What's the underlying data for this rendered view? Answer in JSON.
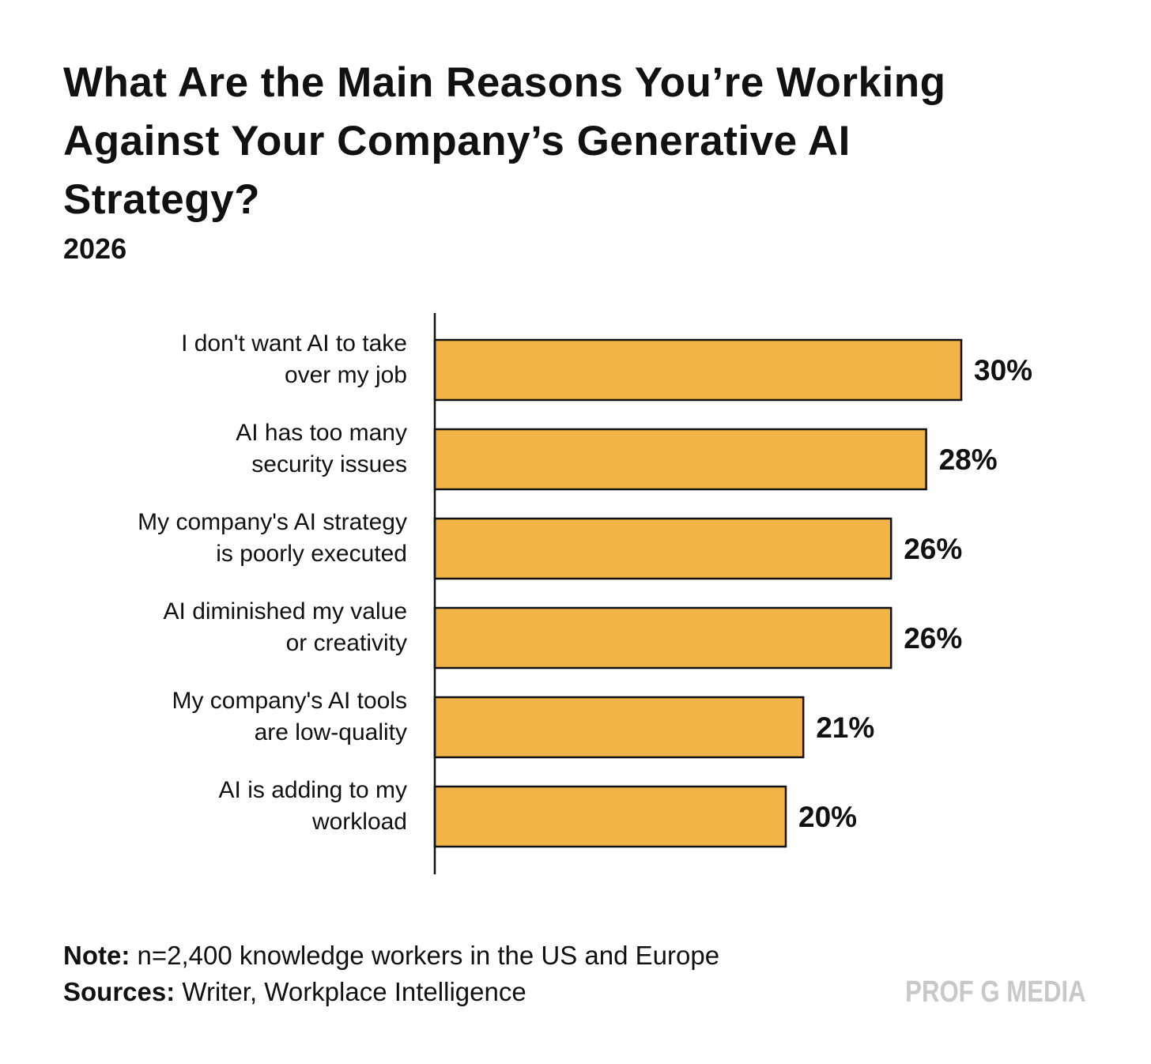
{
  "chart_data": {
    "type": "bar",
    "orientation": "horizontal",
    "title": "What Are the Main Reasons You’re Working Against Your Company’s Generative AI Strategy?",
    "subtitle": "2026",
    "categories": [
      [
        "I don't want AI to take",
        "over my job"
      ],
      [
        "AI has too many",
        "security issues"
      ],
      [
        "My company's AI strategy",
        "is poorly executed"
      ],
      [
        "AI diminished my value",
        "or creativity"
      ],
      [
        "My company's AI tools",
        "are low-quality"
      ],
      [
        "AI is adding to my",
        "workload"
      ]
    ],
    "values": [
      30,
      28,
      26,
      26,
      21,
      20
    ],
    "value_labels": [
      "30%",
      "28%",
      "26%",
      "26%",
      "21%",
      "20%"
    ],
    "xlim": [
      0,
      30
    ],
    "grid": false,
    "legend": "none",
    "bar_color": "#F2B446",
    "bar_outline": "#111111"
  },
  "footer": {
    "note_label": "Note:",
    "note_text": " n=2,400 knowledge workers in the US and Europe",
    "sources_label": "Sources:",
    "sources_text": " Writer, Workplace Intelligence"
  },
  "brand": {
    "text": "PROF G MEDIA",
    "color": "#C8C8C8"
  }
}
